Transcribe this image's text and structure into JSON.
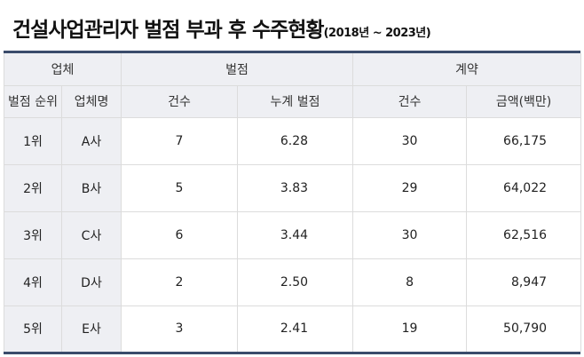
{
  "title": {
    "main": "건설사업관리자 벌점 부과 후 수주현황",
    "sub": "(2018년 ~ 2023년)"
  },
  "colors": {
    "rule": "#3a4c6b",
    "header_bg": "#eeeff3",
    "border": "#dcdcdc"
  },
  "groups": {
    "company": "업체",
    "penalty": "벌점",
    "contract": "계약"
  },
  "columns": {
    "rank": "벌점 순위",
    "name": "업체명",
    "penalty_count": "건수",
    "penalty_total": "누계 벌점",
    "contract_count": "건수",
    "amount": "금액(백만)"
  },
  "rows": [
    {
      "rank": "1위",
      "name": "A사",
      "penalty_count": "7",
      "penalty_total": "6.28",
      "contract_count": "30",
      "amount": "66,175"
    },
    {
      "rank": "2위",
      "name": "B사",
      "penalty_count": "5",
      "penalty_total": "3.83",
      "contract_count": "29",
      "amount": "64,022"
    },
    {
      "rank": "3위",
      "name": "C사",
      "penalty_count": "6",
      "penalty_total": "3.44",
      "contract_count": "30",
      "amount": "62,516"
    },
    {
      "rank": "4위",
      "name": "D사",
      "penalty_count": "2",
      "penalty_total": "2.50",
      "contract_count": "8",
      "amount": "8,947"
    },
    {
      "rank": "5위",
      "name": "E사",
      "penalty_count": "3",
      "penalty_total": "2.41",
      "contract_count": "19",
      "amount": "50,790"
    }
  ]
}
